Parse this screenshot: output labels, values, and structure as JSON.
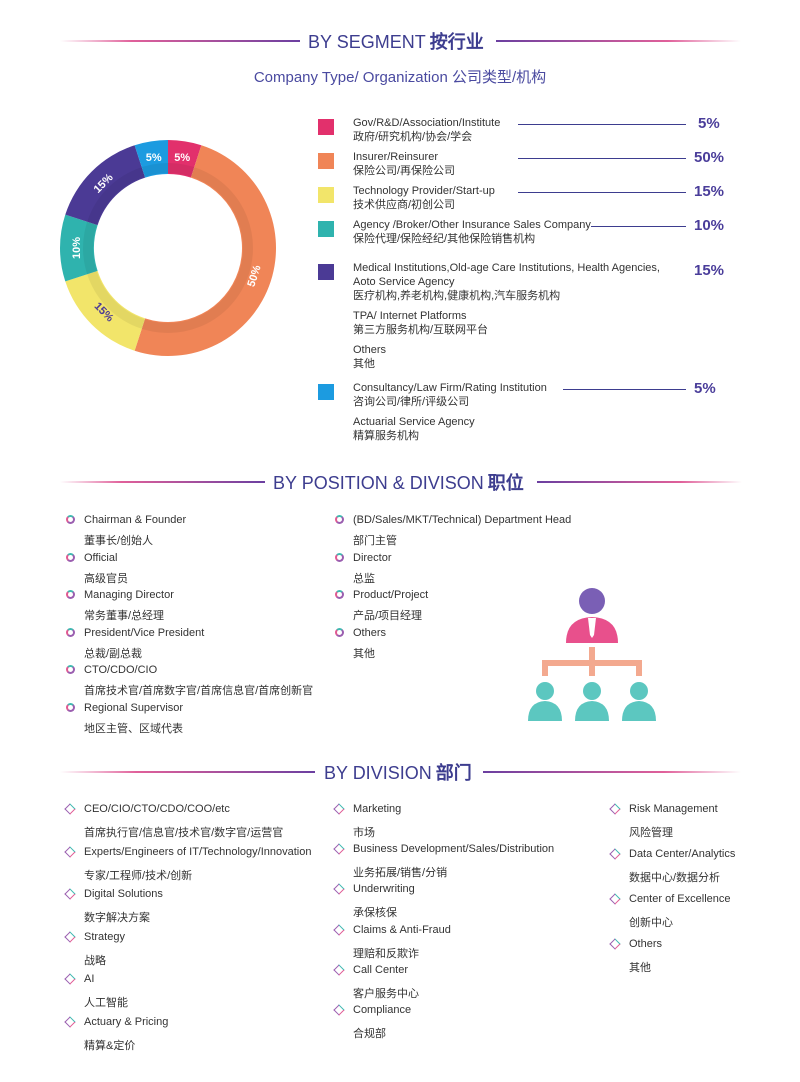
{
  "headings": {
    "segment": {
      "en": "BY SEGMENT",
      "cn": "按行业"
    },
    "position": {
      "en": "BY POSITION & DIVISON",
      "cn": "职位"
    },
    "division": {
      "en": "BY DIVISION",
      "cn": "部门"
    }
  },
  "subtitle": "Company Type/ Organization  公司类型/机构",
  "chart_data": {
    "type": "pie",
    "series": [
      {
        "en": "Gov/R&D/Association/Institute",
        "cn": "政府/研究机构/协会/学会",
        "value": 5,
        "label": "5%",
        "color": "#e2306c"
      },
      {
        "en": "Insurer/Reinsurer",
        "cn": "保险公司/再保险公司",
        "value": 50,
        "label": "50%",
        "color": "#f08557"
      },
      {
        "en": "Technology Provider/Start-up",
        "cn": "技术供应商/初创公司",
        "value": 15,
        "label": "15%",
        "color": "#f2e56a"
      },
      {
        "en": "Agency /Broker/Other Insurance Sales Company",
        "cn": "保险代理/保险经纪/其他保险销售机构",
        "value": 10,
        "label": "10%",
        "color": "#2fb3ae"
      },
      {
        "en": "Medical Institutions,Old-age Care Institutions, Health Agencies,",
        "en2": "Aoto Service Agency",
        "cn": "医疗机构,养老机构,健康机构,汽车服务机构",
        "value": 15,
        "label": "15%",
        "color": "#4b3a95"
      },
      {
        "en": "Consultancy/Law Firm/Rating Institution",
        "cn": "咨询公司/律所/评级公司",
        "value": 5,
        "label": "5%",
        "color": "#1c9be0"
      }
    ]
  },
  "segment_extra": [
    {
      "en": "TPA/ Internet Platforms",
      "cn": "第三方服务机构/互联网平台"
    },
    {
      "en": "Others",
      "cn": "其他"
    },
    {
      "en": "Actuarial Service Agency",
      "cn": "精算服务机构"
    }
  ],
  "positions": {
    "left": [
      {
        "en": "Chairman & Founder",
        "cn": "董事长/创始人"
      },
      {
        "en": "Official",
        "cn": "高级官员"
      },
      {
        "en": "Managing Director",
        "cn": "常务董事/总经理"
      },
      {
        "en": "President/Vice President",
        "cn": "总裁/副总裁"
      },
      {
        "en": "CTO/CDO/CIO",
        "cn": "首席技术官/首席数字官/首席信息官/首席创新官"
      },
      {
        "en": "Regional Supervisor",
        "cn": "地区主管、区域代表"
      }
    ],
    "right": [
      {
        "en": "(BD/Sales/MKT/Technical) Department Head",
        "cn": "部门主管"
      },
      {
        "en": "Director",
        "cn": "总监"
      },
      {
        "en": "Product/Project",
        "cn": "产品/项目经理"
      },
      {
        "en": "Others",
        "cn": "其他"
      }
    ]
  },
  "divisions": {
    "col1": [
      {
        "en": "CEO/CIO/CTO/CDO/COO/etc",
        "cn": "首席执行官/信息官/技术官/数字官/运营官"
      },
      {
        "en": "Experts/Engineers of IT/Technology/Innovation",
        "cn": "专家/工程师/技术/创新"
      },
      {
        "en": "Digital Solutions",
        "cn": "数字解决方案"
      },
      {
        "en": "Strategy",
        "cn": "战略"
      },
      {
        "en": "AI",
        "cn": "人工智能"
      },
      {
        "en": "Actuary & Pricing",
        "cn": "精算&定价"
      }
    ],
    "col2": [
      {
        "en": "Marketing",
        "cn": "市场"
      },
      {
        "en": "Business Development/Sales/Distribution",
        "cn": "业务拓展/销售/分销"
      },
      {
        "en": "Underwriting",
        "cn": "承保核保"
      },
      {
        "en": "Claims & Anti-Fraud",
        "cn": "理赔和反欺诈"
      },
      {
        "en": "Call Center",
        "cn": "客户服务中心"
      },
      {
        "en": "Compliance",
        "cn": "合规部"
      }
    ],
    "col3": [
      {
        "en": "Risk Management",
        "cn": "风险管理"
      },
      {
        "en": "Data Center/Analytics",
        "cn": "数据中心/数据分析"
      },
      {
        "en": "Center of Excellence",
        "cn": "创新中心"
      },
      {
        "en": "Others",
        "cn": "其他"
      }
    ]
  },
  "icons": {
    "org_chart": "org-chart-icon"
  }
}
